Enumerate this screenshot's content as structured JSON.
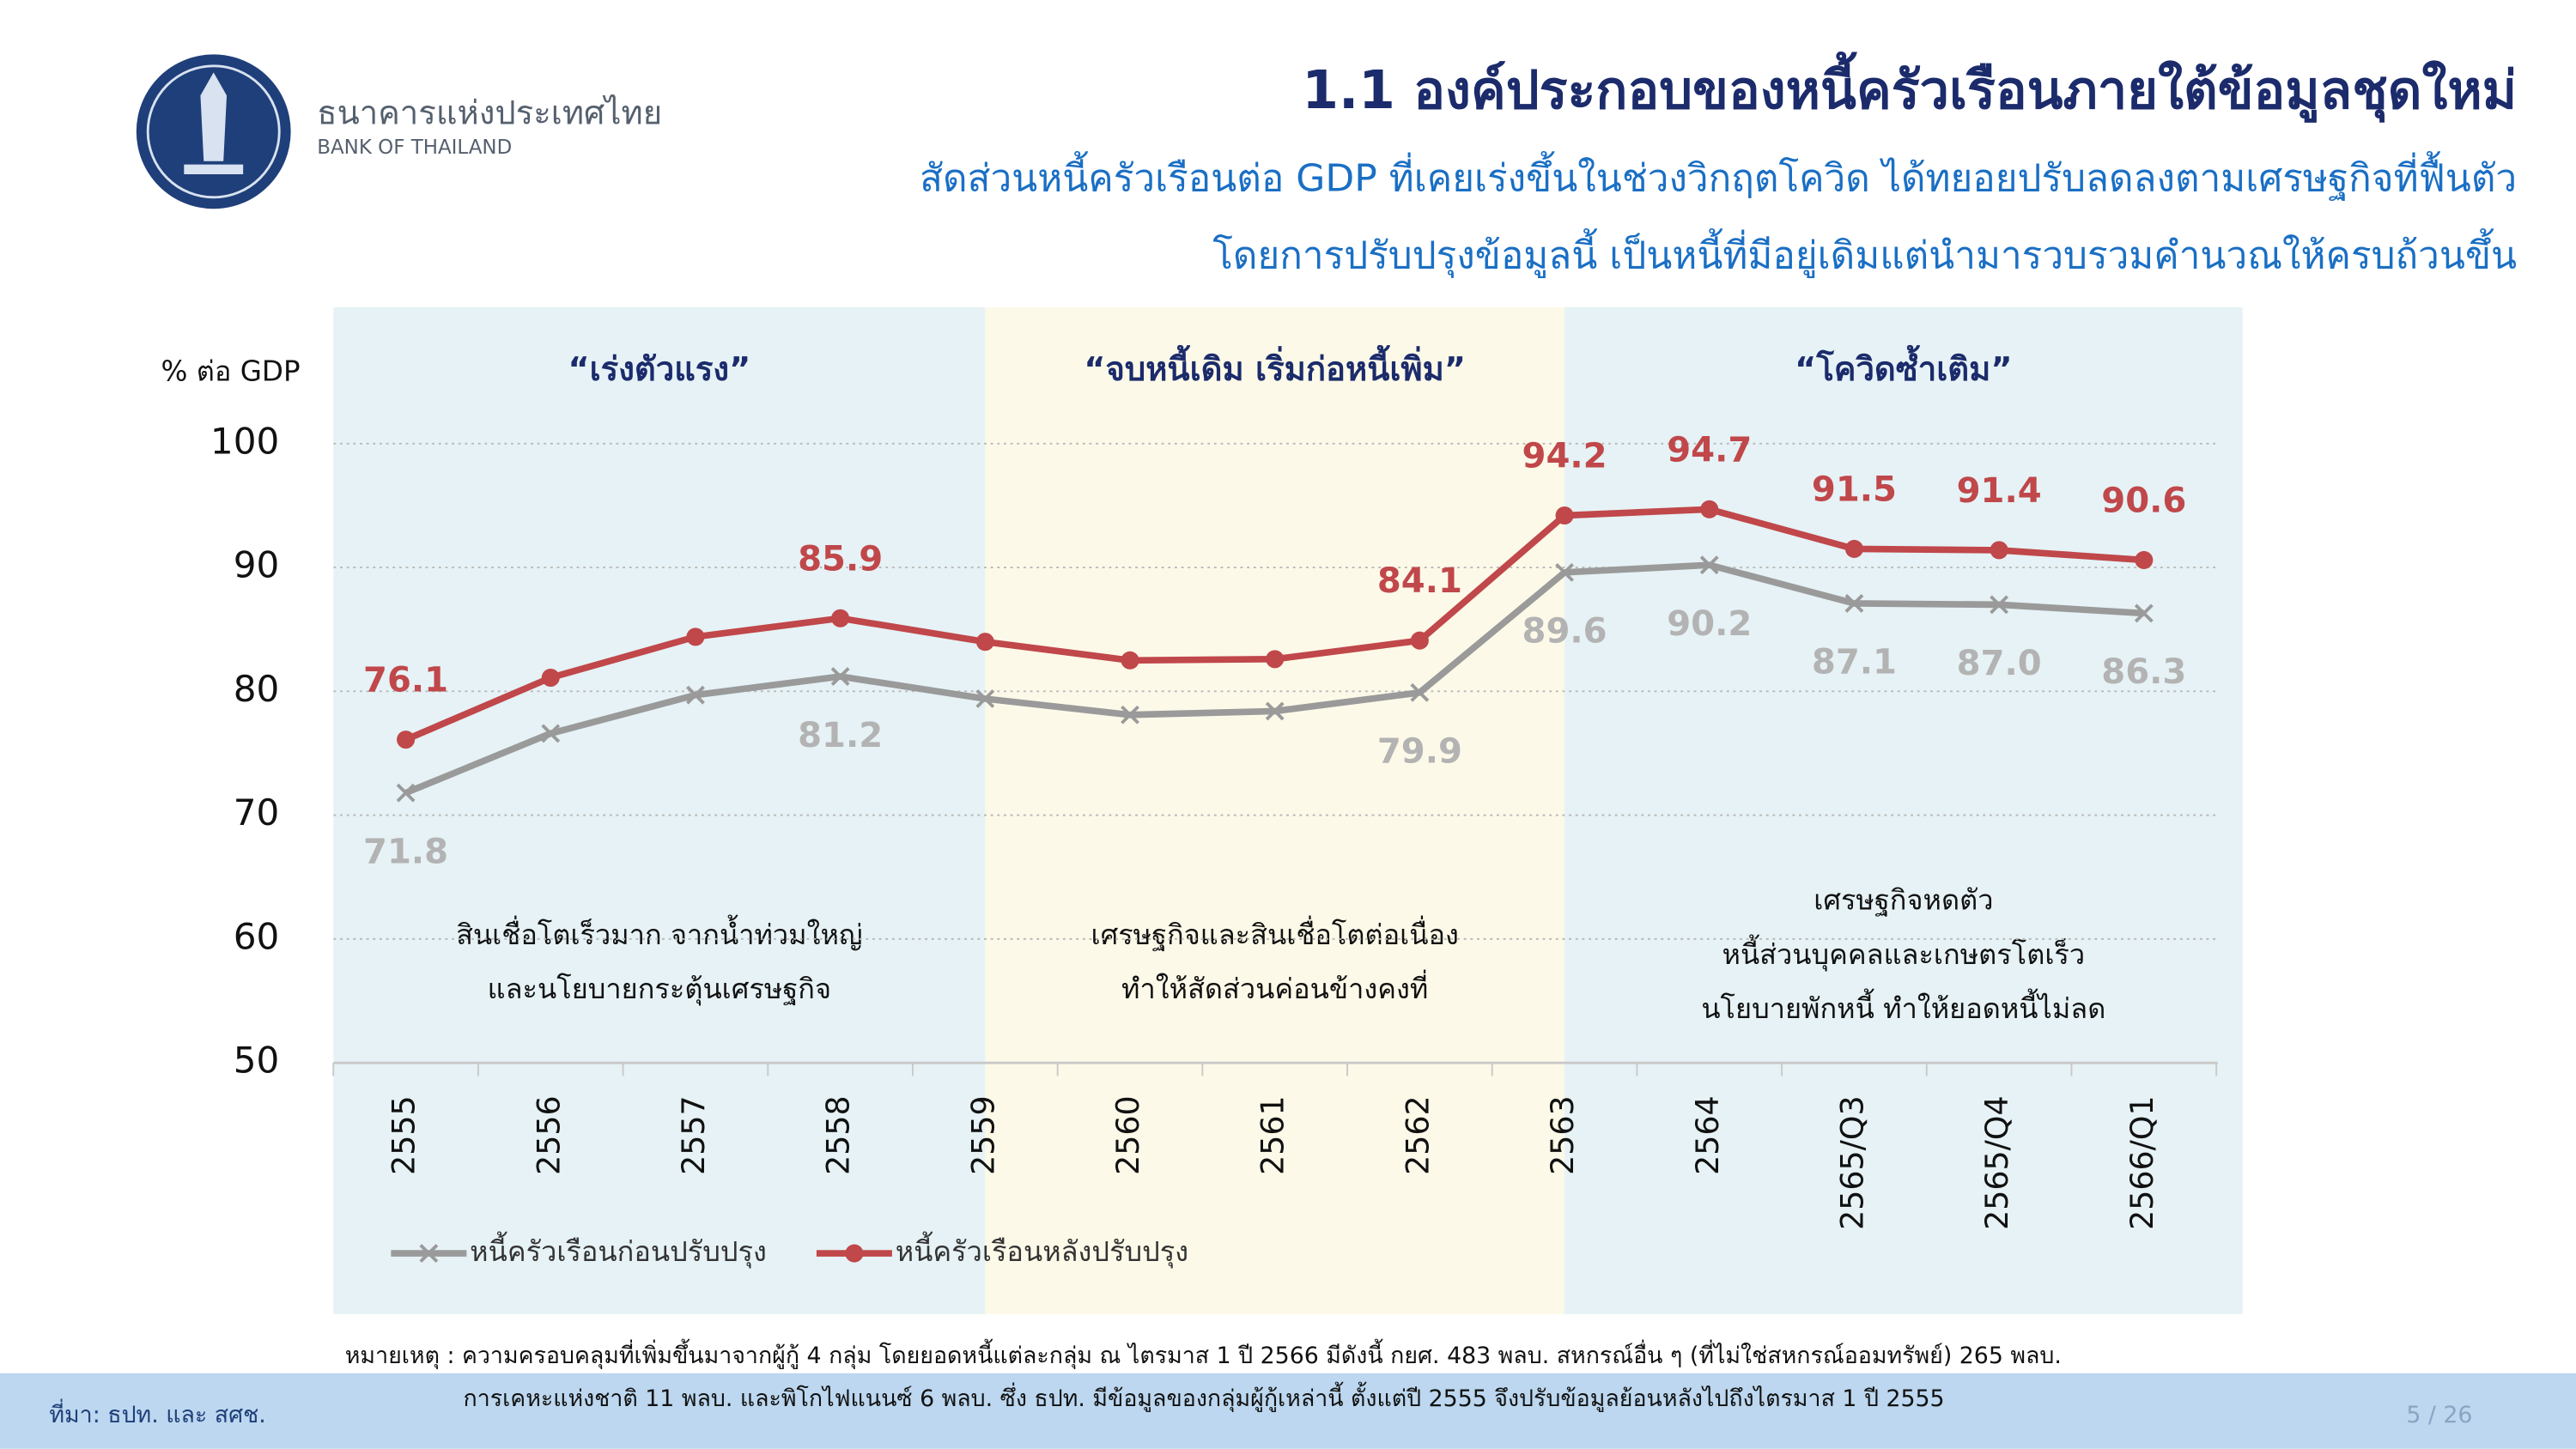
{
  "header": {
    "bank_name_th": "ธนาคารแห่งประเทศไทย",
    "bank_name_en": "BANK OF THAILAND",
    "title": "1.1 องค์ประกอบของหนี้ครัวเรือนภายใต้ข้อมูลชุดใหม่",
    "subtitle_lines": [
      "สัดส่วนหนี้ครัวเรือนต่อ GDP ที่เคยเร่งขึ้นในช่วงวิกฤตโควิด ได้ทยอยปรับลดลงตามเศรษฐกิจที่ฟื้นตัว",
      "โดยการปรับปรุงข้อมูลนี้ เป็นหนี้ที่มีอยู่เดิมแต่นำมารวบรวมคำนวณให้ครบถ้วนขึ้น"
    ]
  },
  "chart_data": {
    "type": "line",
    "y_axis_label": "% ต่อ GDP",
    "categories": [
      "2555",
      "2556",
      "2557",
      "2558",
      "2559",
      "2560",
      "2561",
      "2562",
      "2563",
      "2564",
      "2565/Q3",
      "2565/Q4",
      "2566/Q1"
    ],
    "series": [
      {
        "name": "หนี้ครัวเรือนก่อนปรับปรุง",
        "color": "#9a9a9a",
        "label_color": "#b3b3b3",
        "marker": "x",
        "values": [
          71.8,
          76.6,
          79.7,
          81.2,
          79.4,
          78.1,
          78.4,
          79.9,
          89.6,
          90.2,
          87.1,
          87.0,
          86.3
        ],
        "value_labels": [
          "71.8",
          null,
          null,
          "81.2",
          null,
          null,
          null,
          "79.9",
          "89.6",
          "90.2",
          "87.1",
          "87.0",
          "86.3"
        ]
      },
      {
        "name": "หนี้ครัวเรือนหลังปรับปรุง",
        "color": "#c0474a",
        "label_color": "#c0474a",
        "marker": "circle",
        "values": [
          76.1,
          81.1,
          84.4,
          85.9,
          84.0,
          82.5,
          82.6,
          84.1,
          94.2,
          94.7,
          91.5,
          91.4,
          90.6
        ],
        "value_labels": [
          "76.1",
          null,
          null,
          "85.9",
          null,
          null,
          null,
          "84.1",
          "94.2",
          "94.7",
          "91.5",
          "91.4",
          "90.6"
        ]
      }
    ],
    "ylim": [
      50,
      100
    ],
    "yticks": [
      50,
      60,
      70,
      80,
      90,
      100
    ],
    "grid": true,
    "periods": [
      {
        "label": "“เร่งตัวแรง”",
        "color": "#e6f2f5",
        "span": [
          "2555",
          "2559"
        ],
        "note": [
          "สินเชื่อโตเร็วมาก จากน้ำท่วมใหญ่",
          "และนโยบายกระตุ้นเศรษฐกิจ"
        ]
      },
      {
        "label": "“จบหนี้เดิม เริ่มก่อหนี้เพิ่ม”",
        "color": "#fcf9e8",
        "span": [
          "2559",
          "2563"
        ],
        "note": [
          "เศรษฐกิจและสินเชื่อโตต่อเนื่อง",
          "ทำให้สัดส่วนค่อนข้างคงที่"
        ]
      },
      {
        "label": "“โควิดซ้ำเติม”",
        "color": "#e6f2f5",
        "span": [
          "2563",
          "2566/Q1"
        ],
        "note": [
          "เศรษฐกิจหดตัว",
          "หนี้ส่วนบุคคลและเกษตรโตเร็ว",
          "นโยบายพักหนี้ ทำให้ยอดหนี้ไม่ลด"
        ]
      }
    ]
  },
  "footer": {
    "note_lines": [
      "หมายเหตุ : ความครอบคลุมที่เพิ่มขึ้นมาจากผู้กู้ 4 กลุ่ม โดยยอดหนี้แต่ละกลุ่ม ณ ไตรมาส 1 ปี 2566 มีดังนี้ กยศ. 483 พลบ. สหกรณ์อื่น ๆ (ที่ไม่ใช่สหกรณ์ออมทรัพย์) 265 พลบ.",
      "การเคหะแห่งชาติ 11 พลบ. และพิโกไฟแนนซ์ 6 พลบ. ซึ่ง ธปท. มีข้อมูลของกลุ่มผู้กู้เหล่านี้ ตั้งแต่ปี 2555 จึงปรับข้อมูลย้อนหลังไปถึงไตรมาส 1 ปี 2555"
    ],
    "source": "ที่มา: ธปท. และ สศช.",
    "page": "5 / 26"
  }
}
